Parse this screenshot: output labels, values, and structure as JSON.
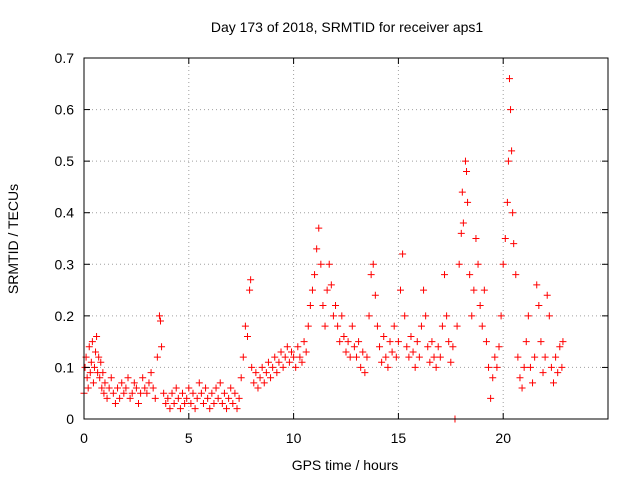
{
  "chart_data": {
    "type": "scatter",
    "title": "Day 173 of 2018, SRMTID for receiver aps1",
    "xlabel": "GPS time / hours",
    "ylabel": "SRMTID / TECUs",
    "xlim": [
      0,
      25
    ],
    "ylim": [
      0,
      0.7
    ],
    "x_ticks": [
      0,
      5,
      10,
      15,
      20
    ],
    "y_ticks": [
      0,
      0.1,
      0.2,
      0.3,
      0.4,
      0.5,
      0.6,
      0.7
    ],
    "x_tick_labels": [
      "0",
      "5",
      "10",
      "15",
      "20"
    ],
    "y_tick_labels": [
      "0",
      "0.1",
      "0.2",
      "0.3",
      "0.4",
      "0.5",
      "0.6",
      "0.7"
    ],
    "grid": true,
    "marker": "plus",
    "color": "#ff0000",
    "series": [
      {
        "name": "aps1",
        "points": [
          [
            0.0,
            0.05
          ],
          [
            0.05,
            0.1
          ],
          [
            0.1,
            0.12
          ],
          [
            0.15,
            0.08
          ],
          [
            0.2,
            0.06
          ],
          [
            0.25,
            0.14
          ],
          [
            0.3,
            0.09
          ],
          [
            0.35,
            0.11
          ],
          [
            0.4,
            0.15
          ],
          [
            0.45,
            0.07
          ],
          [
            0.5,
            0.1
          ],
          [
            0.55,
            0.13
          ],
          [
            0.6,
            0.16
          ],
          [
            0.65,
            0.09
          ],
          [
            0.7,
            0.12
          ],
          [
            0.75,
            0.08
          ],
          [
            0.8,
            0.11
          ],
          [
            0.85,
            0.06
          ],
          [
            0.9,
            0.09
          ],
          [
            0.95,
            0.05
          ],
          [
            1.0,
            0.07
          ],
          [
            1.1,
            0.04
          ],
          [
            1.2,
            0.06
          ],
          [
            1.3,
            0.08
          ],
          [
            1.4,
            0.05
          ],
          [
            1.5,
            0.03
          ],
          [
            1.6,
            0.06
          ],
          [
            1.7,
            0.04
          ],
          [
            1.8,
            0.07
          ],
          [
            1.9,
            0.05
          ],
          [
            2.0,
            0.06
          ],
          [
            2.1,
            0.08
          ],
          [
            2.2,
            0.04
          ],
          [
            2.3,
            0.05
          ],
          [
            2.4,
            0.07
          ],
          [
            2.5,
            0.06
          ],
          [
            2.6,
            0.03
          ],
          [
            2.7,
            0.05
          ],
          [
            2.8,
            0.08
          ],
          [
            2.9,
            0.06
          ],
          [
            3.0,
            0.05
          ],
          [
            3.1,
            0.07
          ],
          [
            3.2,
            0.09
          ],
          [
            3.3,
            0.06
          ],
          [
            3.4,
            0.04
          ],
          [
            3.5,
            0.12
          ],
          [
            3.6,
            0.2
          ],
          [
            3.65,
            0.19
          ],
          [
            3.7,
            0.14
          ],
          [
            3.8,
            0.05
          ],
          [
            3.9,
            0.03
          ],
          [
            4.0,
            0.04
          ],
          [
            4.1,
            0.02
          ],
          [
            4.2,
            0.05
          ],
          [
            4.3,
            0.03
          ],
          [
            4.4,
            0.06
          ],
          [
            4.5,
            0.04
          ],
          [
            4.6,
            0.02
          ],
          [
            4.7,
            0.05
          ],
          [
            4.8,
            0.03
          ],
          [
            4.9,
            0.04
          ],
          [
            5.0,
            0.06
          ],
          [
            5.1,
            0.03
          ],
          [
            5.2,
            0.05
          ],
          [
            5.3,
            0.02
          ],
          [
            5.4,
            0.04
          ],
          [
            5.5,
            0.07
          ],
          [
            5.6,
            0.05
          ],
          [
            5.7,
            0.03
          ],
          [
            5.8,
            0.06
          ],
          [
            5.9,
            0.04
          ],
          [
            6.0,
            0.02
          ],
          [
            6.1,
            0.05
          ],
          [
            6.2,
            0.03
          ],
          [
            6.3,
            0.06
          ],
          [
            6.4,
            0.04
          ],
          [
            6.5,
            0.07
          ],
          [
            6.6,
            0.03
          ],
          [
            6.7,
            0.05
          ],
          [
            6.8,
            0.02
          ],
          [
            6.9,
            0.04
          ],
          [
            7.0,
            0.06
          ],
          [
            7.1,
            0.03
          ],
          [
            7.2,
            0.05
          ],
          [
            7.3,
            0.02
          ],
          [
            7.4,
            0.04
          ],
          [
            7.5,
            0.08
          ],
          [
            7.6,
            0.12
          ],
          [
            7.7,
            0.18
          ],
          [
            7.8,
            0.16
          ],
          [
            7.9,
            0.25
          ],
          [
            7.95,
            0.27
          ],
          [
            8.0,
            0.1
          ],
          [
            8.1,
            0.07
          ],
          [
            8.2,
            0.09
          ],
          [
            8.3,
            0.06
          ],
          [
            8.4,
            0.08
          ],
          [
            8.5,
            0.1
          ],
          [
            8.6,
            0.07
          ],
          [
            8.7,
            0.09
          ],
          [
            8.8,
            0.11
          ],
          [
            8.9,
            0.08
          ],
          [
            9.0,
            0.1
          ],
          [
            9.1,
            0.12
          ],
          [
            9.2,
            0.09
          ],
          [
            9.3,
            0.11
          ],
          [
            9.4,
            0.13
          ],
          [
            9.5,
            0.1
          ],
          [
            9.6,
            0.12
          ],
          [
            9.7,
            0.14
          ],
          [
            9.8,
            0.11
          ],
          [
            9.9,
            0.13
          ],
          [
            10.0,
            0.12
          ],
          [
            10.1,
            0.1
          ],
          [
            10.2,
            0.14
          ],
          [
            10.3,
            0.12
          ],
          [
            10.4,
            0.11
          ],
          [
            10.5,
            0.15
          ],
          [
            10.6,
            0.13
          ],
          [
            10.7,
            0.18
          ],
          [
            10.8,
            0.22
          ],
          [
            10.9,
            0.25
          ],
          [
            11.0,
            0.28
          ],
          [
            11.1,
            0.33
          ],
          [
            11.2,
            0.37
          ],
          [
            11.3,
            0.3
          ],
          [
            11.4,
            0.22
          ],
          [
            11.5,
            0.18
          ],
          [
            11.6,
            0.25
          ],
          [
            11.7,
            0.3
          ],
          [
            11.8,
            0.26
          ],
          [
            11.9,
            0.2
          ],
          [
            12.0,
            0.22
          ],
          [
            12.1,
            0.18
          ],
          [
            12.2,
            0.15
          ],
          [
            12.3,
            0.2
          ],
          [
            12.4,
            0.16
          ],
          [
            12.5,
            0.13
          ],
          [
            12.6,
            0.15
          ],
          [
            12.7,
            0.12
          ],
          [
            12.8,
            0.18
          ],
          [
            12.9,
            0.14
          ],
          [
            13.0,
            0.12
          ],
          [
            13.1,
            0.15
          ],
          [
            13.2,
            0.1
          ],
          [
            13.3,
            0.13
          ],
          [
            13.4,
            0.09
          ],
          [
            13.5,
            0.12
          ],
          [
            13.6,
            0.2
          ],
          [
            13.7,
            0.28
          ],
          [
            13.8,
            0.3
          ],
          [
            13.9,
            0.24
          ],
          [
            14.0,
            0.18
          ],
          [
            14.1,
            0.14
          ],
          [
            14.2,
            0.11
          ],
          [
            14.3,
            0.16
          ],
          [
            14.4,
            0.12
          ],
          [
            14.5,
            0.1
          ],
          [
            14.6,
            0.15
          ],
          [
            14.7,
            0.13
          ],
          [
            14.8,
            0.18
          ],
          [
            14.9,
            0.12
          ],
          [
            15.0,
            0.15
          ],
          [
            15.1,
            0.25
          ],
          [
            15.2,
            0.32
          ],
          [
            15.3,
            0.2
          ],
          [
            15.4,
            0.14
          ],
          [
            15.5,
            0.12
          ],
          [
            15.6,
            0.16
          ],
          [
            15.7,
            0.13
          ],
          [
            15.8,
            0.1
          ],
          [
            15.9,
            0.15
          ],
          [
            16.0,
            0.12
          ],
          [
            16.1,
            0.18
          ],
          [
            16.2,
            0.25
          ],
          [
            16.3,
            0.2
          ],
          [
            16.4,
            0.14
          ],
          [
            16.5,
            0.11
          ],
          [
            16.6,
            0.15
          ],
          [
            16.7,
            0.12
          ],
          [
            16.8,
            0.1
          ],
          [
            16.9,
            0.14
          ],
          [
            17.0,
            0.12
          ],
          [
            17.1,
            0.18
          ],
          [
            17.2,
            0.28
          ],
          [
            17.3,
            0.2
          ],
          [
            17.4,
            0.15
          ],
          [
            17.5,
            0.11
          ],
          [
            17.6,
            0.14
          ],
          [
            17.7,
            0.0
          ],
          [
            17.8,
            0.18
          ],
          [
            17.9,
            0.3
          ],
          [
            18.0,
            0.36
          ],
          [
            18.05,
            0.44
          ],
          [
            18.1,
            0.38
          ],
          [
            18.2,
            0.5
          ],
          [
            18.25,
            0.48
          ],
          [
            18.3,
            0.42
          ],
          [
            18.4,
            0.28
          ],
          [
            18.5,
            0.2
          ],
          [
            18.6,
            0.25
          ],
          [
            18.7,
            0.35
          ],
          [
            18.8,
            0.3
          ],
          [
            18.9,
            0.22
          ],
          [
            19.0,
            0.18
          ],
          [
            19.1,
            0.25
          ],
          [
            19.2,
            0.15
          ],
          [
            19.3,
            0.1
          ],
          [
            19.4,
            0.04
          ],
          [
            19.5,
            0.08
          ],
          [
            19.6,
            0.12
          ],
          [
            19.7,
            0.1
          ],
          [
            19.8,
            0.14
          ],
          [
            19.9,
            0.2
          ],
          [
            20.0,
            0.3
          ],
          [
            20.1,
            0.35
          ],
          [
            20.2,
            0.42
          ],
          [
            20.25,
            0.5
          ],
          [
            20.3,
            0.66
          ],
          [
            20.35,
            0.6
          ],
          [
            20.4,
            0.52
          ],
          [
            20.45,
            0.4
          ],
          [
            20.5,
            0.34
          ],
          [
            20.6,
            0.28
          ],
          [
            20.7,
            0.12
          ],
          [
            20.8,
            0.08
          ],
          [
            20.9,
            0.06
          ],
          [
            21.0,
            0.1
          ],
          [
            21.1,
            0.15
          ],
          [
            21.2,
            0.2
          ],
          [
            21.3,
            0.1
          ],
          [
            21.4,
            0.07
          ],
          [
            21.5,
            0.12
          ],
          [
            21.6,
            0.26
          ],
          [
            21.7,
            0.22
          ],
          [
            21.8,
            0.15
          ],
          [
            21.9,
            0.09
          ],
          [
            22.0,
            0.12
          ],
          [
            22.1,
            0.24
          ],
          [
            22.2,
            0.2
          ],
          [
            22.3,
            0.1
          ],
          [
            22.4,
            0.07
          ],
          [
            22.5,
            0.12
          ],
          [
            22.6,
            0.09
          ],
          [
            22.7,
            0.14
          ],
          [
            22.8,
            0.1
          ],
          [
            22.85,
            0.15
          ]
        ]
      }
    ]
  }
}
